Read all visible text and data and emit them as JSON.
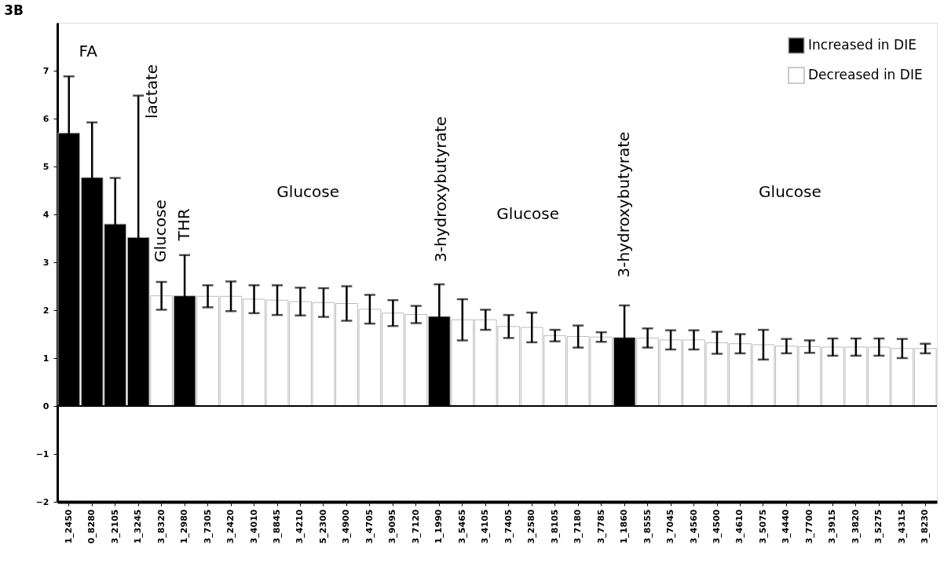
{
  "chart_data": {
    "type": "bar",
    "title": "3B",
    "categories": [
      "1_2450",
      "0_8280",
      "3_2105",
      "1_3245",
      "3_8320",
      "1_2980",
      "3_7305",
      "3_2420",
      "3_4010",
      "3_8845",
      "3_4210",
      "5_2300",
      "3_4900",
      "3_4705",
      "3_9095",
      "3_7120",
      "1_1990",
      "3_5465",
      "3_4105",
      "3_7405",
      "3_2580",
      "3_8105",
      "3_7180",
      "3_7785",
      "1_1860",
      "3_8555",
      "3_7045",
      "3_4560",
      "3_4500",
      "3_4610",
      "3_5075",
      "3_4440",
      "3_7700",
      "3_3915",
      "3_3820",
      "3_5275",
      "3_4315",
      "3_8230"
    ],
    "series": [
      {
        "name": "Increased in DIE",
        "color": "#000000",
        "values": [
          5.7,
          4.77,
          3.8,
          3.52,
          null,
          2.3,
          null,
          null,
          null,
          null,
          null,
          null,
          null,
          null,
          null,
          null,
          1.87,
          null,
          null,
          null,
          null,
          null,
          null,
          null,
          1.43,
          null,
          null,
          null,
          null,
          null,
          null,
          null,
          null,
          null,
          null,
          null,
          null,
          null
        ],
        "errors": [
          1.18,
          1.15,
          0.96,
          2.96,
          null,
          0.85,
          null,
          null,
          null,
          null,
          null,
          null,
          null,
          null,
          null,
          null,
          0.67,
          null,
          null,
          null,
          null,
          null,
          null,
          null,
          0.67,
          null,
          null,
          null,
          null,
          null,
          null,
          null,
          null,
          null,
          null,
          null,
          null,
          null
        ]
      },
      {
        "name": "Decreased in DIE",
        "color": "#ffffff",
        "values": [
          null,
          null,
          null,
          null,
          2.3,
          null,
          2.29,
          2.29,
          2.23,
          2.21,
          2.18,
          2.16,
          2.14,
          2.02,
          1.94,
          1.91,
          null,
          1.8,
          1.8,
          1.66,
          1.64,
          1.47,
          1.45,
          1.44,
          null,
          1.42,
          1.38,
          1.38,
          1.32,
          1.3,
          1.28,
          1.25,
          1.24,
          1.23,
          1.23,
          1.23,
          1.2,
          1.2
        ],
        "errors": [
          null,
          null,
          null,
          null,
          0.29,
          null,
          0.23,
          0.31,
          0.29,
          0.31,
          0.29,
          0.3,
          0.36,
          0.3,
          0.27,
          0.18,
          null,
          0.43,
          0.21,
          0.24,
          0.31,
          0.12,
          0.23,
          0.1,
          null,
          0.2,
          0.2,
          0.2,
          0.23,
          0.2,
          0.31,
          0.15,
          0.13,
          0.18,
          0.18,
          0.18,
          0.2,
          0.1
        ]
      }
    ],
    "ylim": [
      -2,
      8
    ],
    "yticks": [
      -2,
      -1,
      0,
      1,
      2,
      3,
      4,
      5,
      6,
      7
    ],
    "ref_lines": [
      {
        "axis": "y",
        "value": 0
      }
    ],
    "annotations": [
      "FA",
      "lactate",
      "Glucose",
      "THR",
      "Glucose",
      "3-hydroxybutyrate",
      "Glucose",
      "3-hydroxybutyrate",
      "Glucose"
    ],
    "legend": "top right",
    "grid": false
  }
}
